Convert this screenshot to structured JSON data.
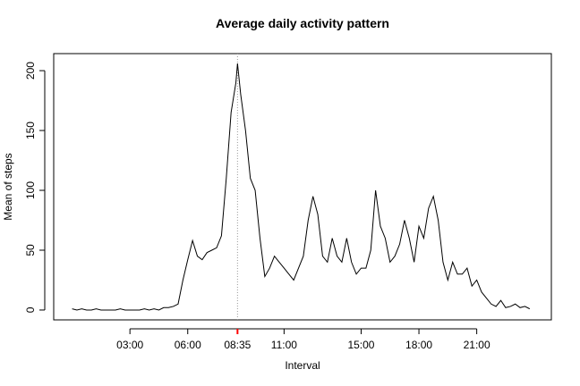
{
  "chart_data": {
    "type": "line",
    "title": "Average daily activity pattern",
    "x_label": "Interval",
    "y_label": "Mean of steps",
    "x": [
      0,
      15,
      30,
      45,
      60,
      75,
      90,
      105,
      120,
      135,
      150,
      165,
      180,
      195,
      210,
      225,
      240,
      255,
      270,
      285,
      300,
      315,
      330,
      345,
      360,
      375,
      390,
      405,
      420,
      435,
      450,
      465,
      480,
      495,
      510,
      515,
      525,
      540,
      555,
      570,
      585,
      600,
      615,
      630,
      645,
      660,
      675,
      690,
      705,
      720,
      735,
      750,
      765,
      780,
      795,
      810,
      825,
      840,
      855,
      870,
      885,
      900,
      915,
      930,
      945,
      960,
      975,
      990,
      1005,
      1020,
      1035,
      1050,
      1065,
      1080,
      1095,
      1110,
      1125,
      1140,
      1155,
      1170,
      1185,
      1200,
      1215,
      1230,
      1245,
      1260,
      1275,
      1290,
      1305,
      1320,
      1335,
      1350,
      1365,
      1380,
      1395,
      1410,
      1425
    ],
    "values": [
      1,
      0,
      1,
      0,
      0,
      1,
      0,
      0,
      0,
      0,
      1,
      0,
      0,
      0,
      0,
      1,
      0,
      1,
      0,
      2,
      2,
      3,
      5,
      25,
      42,
      58,
      45,
      42,
      48,
      50,
      52,
      62,
      110,
      165,
      190,
      206,
      180,
      150,
      110,
      100,
      60,
      28,
      35,
      45,
      40,
      35,
      30,
      25,
      35,
      45,
      75,
      95,
      80,
      45,
      40,
      60,
      45,
      40,
      60,
      40,
      30,
      35,
      35,
      50,
      100,
      70,
      60,
      40,
      45,
      55,
      75,
      60,
      40,
      70,
      60,
      85,
      95,
      75,
      40,
      25,
      40,
      30,
      30,
      35,
      20,
      25,
      15,
      10,
      5,
      3,
      8,
      2,
      3,
      5,
      2,
      3,
      1
    ],
    "color": "#000000",
    "xlim": [
      -57.4,
      1492.4
    ],
    "xticks": [
      {
        "value": 180,
        "label": "03:00"
      },
      {
        "value": 360,
        "label": "06:00"
      },
      {
        "value": 515,
        "label": "08:35"
      },
      {
        "value": 660,
        "label": "11:00"
      },
      {
        "value": 900,
        "label": "15:00"
      },
      {
        "value": 1080,
        "label": "18:00"
      },
      {
        "value": 1260,
        "label": "21:00"
      }
    ],
    "ylim": [
      -8.24,
      214.24
    ],
    "yticks": [
      0,
      50,
      100,
      150,
      200
    ],
    "vline": 515,
    "vline_color": "#ff0000"
  }
}
